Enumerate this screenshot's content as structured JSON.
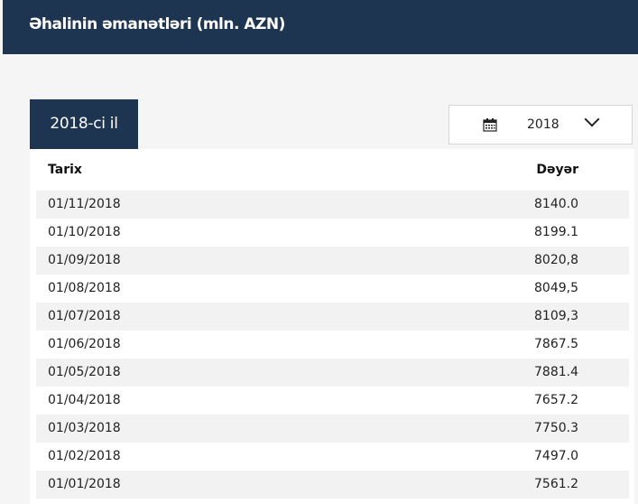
{
  "header": {
    "title": "Əhalinin əmanətləri (mln. AZN)"
  },
  "tab": {
    "label": "2018-ci il"
  },
  "year_select": {
    "value": "2018",
    "icon": "calendar-icon"
  },
  "table": {
    "columns": [
      "Tarix",
      "Dəyər"
    ],
    "rows": [
      {
        "date": "01/11/2018",
        "value": "8140.0"
      },
      {
        "date": "01/10/2018",
        "value": "8199.1"
      },
      {
        "date": "01/09/2018",
        "value": "8020,8"
      },
      {
        "date": "01/08/2018",
        "value": "8049,5"
      },
      {
        "date": "01/07/2018",
        "value": "8109,3"
      },
      {
        "date": "01/06/2018",
        "value": "7867.5"
      },
      {
        "date": "01/05/2018",
        "value": "7881.4"
      },
      {
        "date": "01/04/2018",
        "value": "7657.2"
      },
      {
        "date": "01/03/2018",
        "value": "7750.3"
      },
      {
        "date": "01/02/2018",
        "value": "7497.0"
      },
      {
        "date": "01/01/2018",
        "value": "7561.2"
      }
    ]
  }
}
